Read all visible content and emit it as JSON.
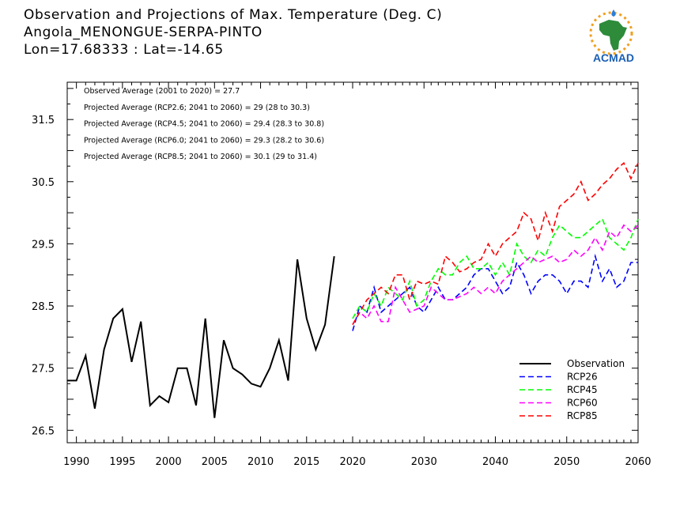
{
  "title_lines": [
    "Observation and Projections of Max. Temperature (Deg. C)",
    "Angola_MENONGUE-SERPA-PINTO",
    "Lon=17.68333 : Lat=-14.65"
  ],
  "logo": {
    "text": "ACMAD",
    "icon": "africa-map-sun-logo"
  },
  "annotations": [
    "Observed Average (2001 to 2020) = 27.7",
    "Projected Average (RCP2.6; 2041 to 2060) = 29 (28 to 30.3)",
    "Projected Average (RCP4.5; 2041 to 2060) = 29.4 (28.3 to 30.8)",
    "Projected Average (RCP6.0; 2041 to 2060) = 29.3 (28.2 to 30.6)",
    "Projected Average (RCP8.5; 2041 to 2060) = 30.1 (29 to 31.4)"
  ],
  "chart_data": {
    "type": "line",
    "title": "Observation and Projections of Max. Temperature (Deg. C)",
    "xlabel": "",
    "ylabel": "",
    "x_segments": [
      {
        "range": [
          1989,
          2020
        ],
        "ticks": [
          1990,
          1995,
          2000,
          2005,
          2010,
          2015,
          2020
        ]
      },
      {
        "range": [
          2020,
          2060
        ],
        "ticks": [
          2030,
          2040,
          2050,
          2060
        ]
      }
    ],
    "x_tick_labels": [
      "1990",
      "1995",
      "2000",
      "2005",
      "2010",
      "2015",
      "2020",
      "2030",
      "2040",
      "2050",
      "2060"
    ],
    "ylim": [
      26.3,
      32.1
    ],
    "y_ticks": [
      26.5,
      27.5,
      28.5,
      29.5,
      30.5,
      31.5
    ],
    "y_tick_labels": [
      "26.5",
      "27.5",
      "28.5",
      "29.5",
      "30.5",
      "31.5"
    ],
    "grid": false,
    "legend_position": "bottom-right",
    "series": [
      {
        "name": "Observation",
        "color": "#000000",
        "style": "solid",
        "x": [
          1989,
          1990,
          1991,
          1992,
          1993,
          1994,
          1995,
          1996,
          1997,
          1998,
          1999,
          2000,
          2001,
          2002,
          2003,
          2004,
          2005,
          2006,
          2007,
          2008,
          2009,
          2010,
          2011,
          2012,
          2013,
          2014,
          2015,
          2016,
          2017,
          2018,
          2019
        ],
        "y": [
          27.3,
          27.3,
          27.7,
          26.85,
          27.8,
          28.3,
          28.45,
          27.6,
          28.25,
          26.9,
          27.05,
          26.95,
          27.5,
          27.5,
          26.9,
          28.3,
          26.7,
          27.95,
          27.5,
          27.4,
          27.25,
          27.2,
          27.5,
          27.95,
          27.3,
          29.25,
          28.3,
          27.8,
          28.2,
          29.3,
          null
        ]
      },
      {
        "name": "RCP26",
        "color": "#0000ff",
        "style": "dashed",
        "x": [
          2020,
          2021,
          2022,
          2023,
          2024,
          2025,
          2026,
          2027,
          2028,
          2029,
          2030,
          2031,
          2032,
          2033,
          2034,
          2035,
          2036,
          2037,
          2038,
          2039,
          2040,
          2041,
          2042,
          2043,
          2044,
          2045,
          2046,
          2047,
          2048,
          2049,
          2050,
          2051,
          2052,
          2053,
          2054,
          2055,
          2056,
          2057,
          2058,
          2059,
          2060
        ],
        "y": [
          28.1,
          28.5,
          28.4,
          28.8,
          28.4,
          28.5,
          28.6,
          28.7,
          28.8,
          28.5,
          28.4,
          28.6,
          28.8,
          28.6,
          28.6,
          28.7,
          28.8,
          29.0,
          29.1,
          29.1,
          28.9,
          28.7,
          28.8,
          29.2,
          29.0,
          28.7,
          28.9,
          29.0,
          29.0,
          28.9,
          28.7,
          28.9,
          28.9,
          28.8,
          29.3,
          28.9,
          29.1,
          28.8,
          28.9,
          29.2,
          29.2
        ]
      },
      {
        "name": "RCP45",
        "color": "#00ff00",
        "style": "dashed",
        "x": [
          2020,
          2021,
          2022,
          2023,
          2024,
          2025,
          2026,
          2027,
          2028,
          2029,
          2030,
          2031,
          2032,
          2033,
          2034,
          2035,
          2036,
          2037,
          2038,
          2039,
          2040,
          2041,
          2042,
          2043,
          2044,
          2045,
          2046,
          2047,
          2048,
          2049,
          2050,
          2051,
          2052,
          2053,
          2054,
          2055,
          2056,
          2057,
          2058,
          2059,
          2060
        ],
        "y": [
          28.3,
          28.5,
          28.4,
          28.7,
          28.5,
          28.8,
          28.7,
          28.6,
          28.9,
          28.5,
          28.6,
          28.9,
          29.1,
          29.0,
          29.0,
          29.2,
          29.3,
          29.1,
          29.1,
          29.2,
          29.0,
          29.2,
          29.0,
          29.5,
          29.3,
          29.2,
          29.4,
          29.3,
          29.6,
          29.8,
          29.7,
          29.6,
          29.6,
          29.7,
          29.8,
          29.9,
          29.6,
          29.5,
          29.4,
          29.6,
          29.9
        ]
      },
      {
        "name": "RCP60",
        "color": "#ff00ff",
        "style": "dashed",
        "x": [
          2020,
          2021,
          2022,
          2023,
          2024,
          2025,
          2026,
          2027,
          2028,
          2029,
          2030,
          2031,
          2032,
          2033,
          2034,
          2035,
          2036,
          2037,
          2038,
          2039,
          2040,
          2041,
          2042,
          2043,
          2044,
          2045,
          2046,
          2047,
          2048,
          2049,
          2050,
          2051,
          2052,
          2053,
          2054,
          2055,
          2056,
          2057,
          2058,
          2059,
          2060
        ],
        "y": [
          28.2,
          28.4,
          28.3,
          28.5,
          28.25,
          28.25,
          28.8,
          28.6,
          28.4,
          28.45,
          28.5,
          28.8,
          28.7,
          28.6,
          28.6,
          28.65,
          28.7,
          28.8,
          28.7,
          28.8,
          28.7,
          28.9,
          29.0,
          29.1,
          29.2,
          29.3,
          29.2,
          29.25,
          29.3,
          29.2,
          29.25,
          29.4,
          29.3,
          29.4,
          29.6,
          29.4,
          29.7,
          29.6,
          29.8,
          29.7,
          29.8
        ]
      },
      {
        "name": "RCP85",
        "color": "#ff0000",
        "style": "dashed",
        "x": [
          2020,
          2021,
          2022,
          2023,
          2024,
          2025,
          2026,
          2027,
          2028,
          2029,
          2030,
          2031,
          2032,
          2033,
          2034,
          2035,
          2036,
          2037,
          2038,
          2039,
          2040,
          2041,
          2042,
          2043,
          2044,
          2045,
          2046,
          2047,
          2048,
          2049,
          2050,
          2051,
          2052,
          2053,
          2054,
          2055,
          2056,
          2057,
          2058,
          2059,
          2060
        ],
        "y": [
          28.2,
          28.4,
          28.6,
          28.7,
          28.8,
          28.7,
          29.0,
          29.0,
          28.6,
          28.9,
          28.85,
          28.9,
          28.85,
          29.3,
          29.2,
          29.05,
          29.1,
          29.2,
          29.25,
          29.5,
          29.3,
          29.5,
          29.6,
          29.7,
          30.0,
          29.9,
          29.55,
          30.0,
          29.7,
          30.1,
          30.2,
          30.3,
          30.5,
          30.2,
          30.3,
          30.45,
          30.55,
          30.7,
          30.8,
          30.55,
          30.8
        ]
      }
    ]
  }
}
